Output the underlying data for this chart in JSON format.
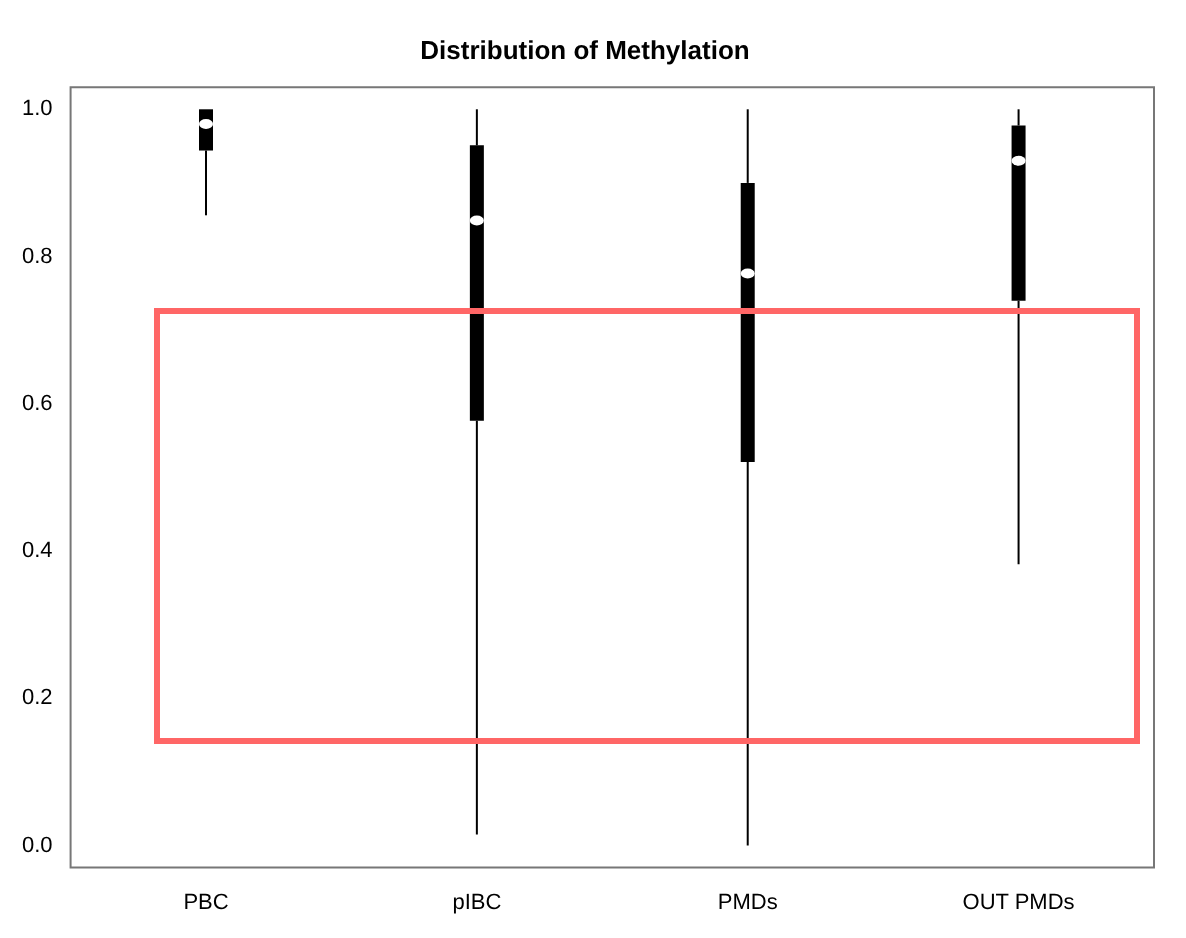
{
  "chart_data": {
    "type": "box",
    "title": "Distribution of Methylation",
    "categories": [
      "PBC",
      "pIBC",
      "PMDs",
      "OUT PMDs"
    ],
    "boxes": [
      {
        "low": 0.856,
        "q1": 0.944,
        "median": 0.98,
        "q3": 1.0,
        "high": 1.0
      },
      {
        "low": 0.015,
        "q1": 0.577,
        "median": 0.849,
        "q3": 0.951,
        "high": 1.0
      },
      {
        "low": 0.0,
        "q1": 0.521,
        "median": 0.777,
        "q3": 0.9,
        "high": 1.0
      },
      {
        "low": 0.382,
        "q1": 0.74,
        "median": 0.93,
        "q3": 0.978,
        "high": 1.0
      }
    ],
    "ylim": [
      -0.03,
      1.03
    ],
    "yticks": [
      {
        "value": 0,
        "label": "0.0"
      },
      0.2,
      0.4,
      0.6,
      0.8,
      {
        "value": 1,
        "label": "1.0"
      }
    ],
    "grid": false,
    "legend": false
  }
}
